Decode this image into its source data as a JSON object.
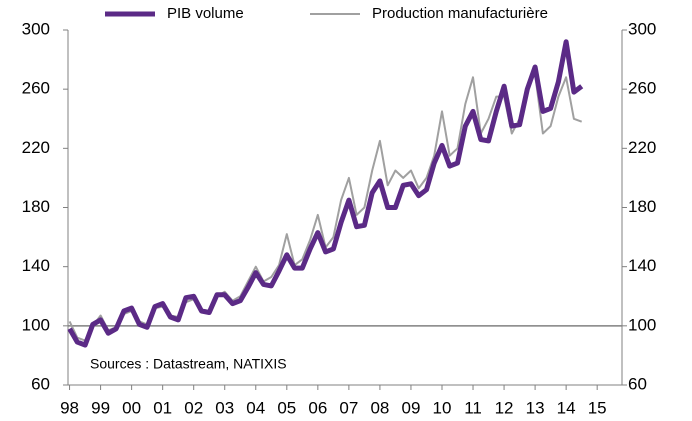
{
  "chart_data": {
    "type": "line",
    "annotations": [
      "Sources : Datastream, NATIXIS"
    ],
    "x": [
      1998,
      1998.25,
      1998.5,
      1998.75,
      1999,
      1999.25,
      1999.5,
      1999.75,
      2000,
      2000.25,
      2000.5,
      2000.75,
      2001,
      2001.25,
      2001.5,
      2001.75,
      2002,
      2002.25,
      2002.5,
      2002.75,
      2003,
      2003.25,
      2003.5,
      2003.75,
      2004,
      2004.25,
      2004.5,
      2004.75,
      2005,
      2005.25,
      2005.5,
      2005.75,
      2006,
      2006.25,
      2006.5,
      2006.75,
      2007,
      2007.25,
      2007.5,
      2007.75,
      2008,
      2008.25,
      2008.5,
      2008.75,
      2009,
      2009.25,
      2009.5,
      2009.75,
      2010,
      2010.25,
      2010.5,
      2010.75,
      2011,
      2011.25,
      2011.5,
      2011.75,
      2012,
      2012.25,
      2012.5,
      2012.75,
      2013,
      2013.25,
      2013.5,
      2013.75,
      2014,
      2014.25,
      2014.5
    ],
    "series": [
      {
        "name": "PIB volume",
        "color": "#5b2a86",
        "width": 5,
        "values": [
          98,
          89,
          87,
          101,
          104,
          95,
          98,
          110,
          112,
          101,
          99,
          113,
          115,
          106,
          104,
          119,
          120,
          110,
          109,
          121,
          121,
          115,
          117,
          126,
          136,
          128,
          127,
          137,
          148,
          139,
          139,
          152,
          163,
          150,
          152,
          170,
          185,
          167,
          168,
          190,
          198,
          180,
          180,
          195,
          196,
          188,
          192,
          210,
          222,
          208,
          210,
          235,
          245,
          226,
          225,
          245,
          262,
          235,
          236,
          260,
          275,
          245,
          247,
          265,
          292,
          258,
          262
        ]
      },
      {
        "name": "Production manufacturière",
        "color": "#a0a0a0",
        "width": 2,
        "values": [
          103,
          92,
          90,
          100,
          107,
          97,
          99,
          108,
          110,
          103,
          101,
          112,
          113,
          107,
          106,
          116,
          118,
          111,
          110,
          120,
          123,
          117,
          120,
          130,
          140,
          130,
          133,
          141,
          162,
          141,
          145,
          158,
          175,
          153,
          160,
          185,
          200,
          175,
          180,
          205,
          225,
          195,
          205,
          200,
          205,
          193,
          200,
          215,
          245,
          215,
          220,
          250,
          268,
          230,
          240,
          255,
          255,
          230,
          240,
          262,
          270,
          230,
          235,
          255,
          268,
          240,
          238
        ]
      }
    ],
    "xlim": [
      1997.95,
      2015.8
    ],
    "xticks": [
      {
        "value": 1998,
        "label": "98"
      },
      {
        "value": 1999,
        "label": "99"
      },
      {
        "value": 2000,
        "label": "00"
      },
      {
        "value": 2001,
        "label": "01"
      },
      {
        "value": 2002,
        "label": "02"
      },
      {
        "value": 2003,
        "label": "03"
      },
      {
        "value": 2004,
        "label": "04"
      },
      {
        "value": 2005,
        "label": "05"
      },
      {
        "value": 2006,
        "label": "06"
      },
      {
        "value": 2007,
        "label": "07"
      },
      {
        "value": 2008,
        "label": "08"
      },
      {
        "value": 2009,
        "label": "09"
      },
      {
        "value": 2010,
        "label": "10"
      },
      {
        "value": 2011,
        "label": "11"
      },
      {
        "value": 2012,
        "label": "12"
      },
      {
        "value": 2013,
        "label": "13"
      },
      {
        "value": 2014,
        "label": "14"
      },
      {
        "value": 2015,
        "label": "15"
      }
    ],
    "ylim": [
      60,
      300
    ],
    "yticks": [
      60,
      100,
      140,
      180,
      220,
      260,
      300
    ],
    "y2lim": [
      60,
      300
    ],
    "y2ticks": [
      60,
      100,
      140,
      180,
      220,
      260,
      300
    ],
    "reference_line": 100,
    "reference_color": "#808080",
    "legend": "top"
  }
}
